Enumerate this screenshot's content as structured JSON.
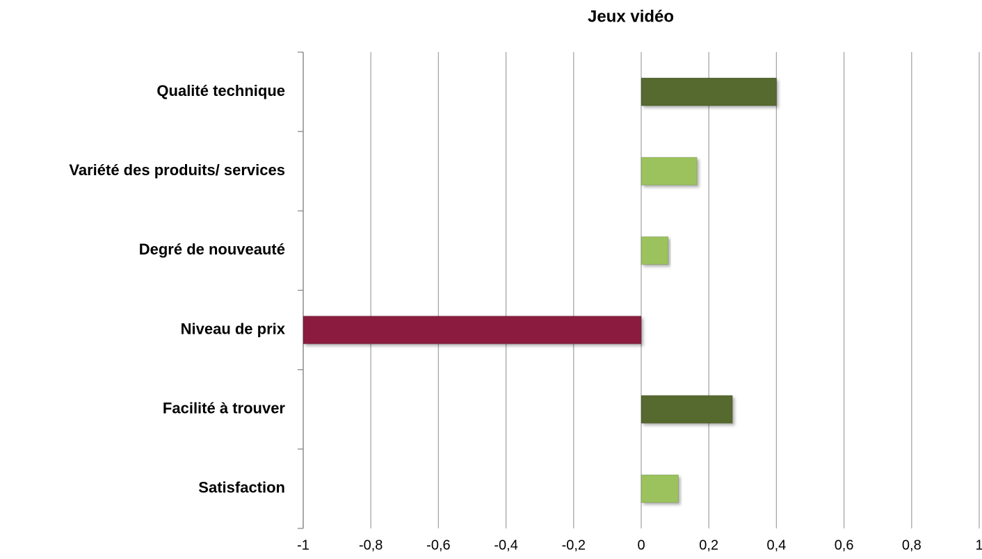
{
  "chart_data": {
    "type": "hbar",
    "title": "Jeux vidéo",
    "categories": [
      "Qualité technique",
      "Variété des produits/ services",
      "Degré de nouveauté",
      "Niveau de prix",
      "Facilité à trouver",
      "Satisfaction"
    ],
    "values": [
      0.4,
      0.165,
      0.08,
      -1,
      0.27,
      0.11
    ],
    "colors": [
      "#56692f",
      "#9bc25d",
      "#9bc25d",
      "#8b1f41",
      "#56692f",
      "#9bc25d"
    ],
    "xlim": [
      -1,
      1
    ],
    "xticks": [
      -1,
      {
        "value": -0.8,
        "label": "-0,8"
      },
      {
        "value": -0.6,
        "label": "-0,6"
      },
      {
        "value": -0.4,
        "label": "-0,4"
      },
      {
        "value": -0.2,
        "label": "-0,2"
      },
      0,
      {
        "value": 0.2,
        "label": "0,2"
      },
      {
        "value": 0.4,
        "label": "0,4"
      },
      {
        "value": 0.6,
        "label": "0,6"
      },
      {
        "value": 0.8,
        "label": "0,8"
      },
      1
    ],
    "grid": true
  }
}
